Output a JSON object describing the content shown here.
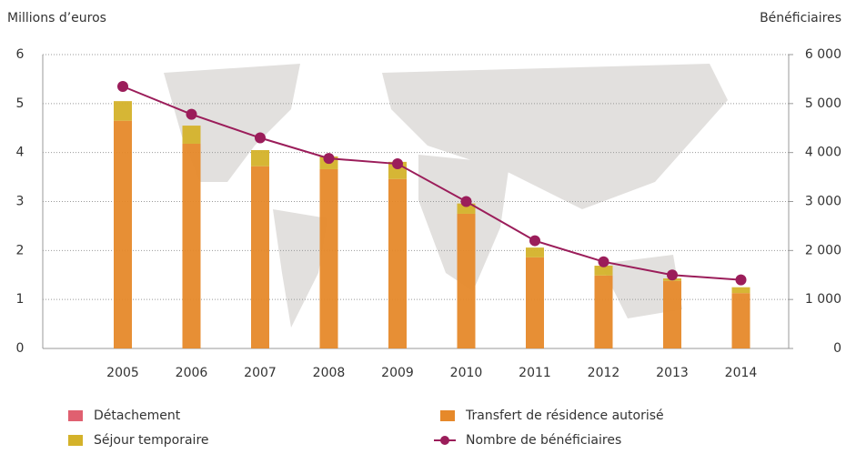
{
  "chart_data": {
    "type": "bar",
    "y_label": "Millions d’euros",
    "y2_label": "Bénéficiaires",
    "categories": [
      "2005",
      "2006",
      "2007",
      "2008",
      "2009",
      "2010",
      "2011",
      "2012",
      "2013",
      "2014"
    ],
    "series": [
      {
        "name": "Transfert de résidence autorisé",
        "color": "#e6892a",
        "values": [
          4.65,
          4.18,
          3.72,
          3.66,
          3.46,
          2.75,
          1.86,
          1.49,
          1.38,
          1.13
        ]
      },
      {
        "name": "Séjour temporaire",
        "color": "#d4b22a",
        "values": [
          0.4,
          0.37,
          0.33,
          0.26,
          0.35,
          0.21,
          0.2,
          0.2,
          0.05,
          0.12
        ]
      },
      {
        "name": "Détachement",
        "color": "#e06070",
        "values": [
          0,
          0,
          0,
          0,
          0,
          0,
          0,
          0,
          0,
          0
        ]
      },
      {
        "name": "Nombre de bénéficiaires",
        "color": "#9b1d5a",
        "type": "line",
        "axis": "y2",
        "values": [
          5350,
          4780,
          4300,
          3880,
          3770,
          3000,
          2200,
          1770,
          1500,
          1400
        ]
      }
    ],
    "ylim": [
      0,
      6
    ],
    "yticks": [
      0,
      1,
      2,
      3,
      4,
      5,
      6
    ],
    "y2lim": [
      0,
      6000
    ],
    "y2ticks": [
      0,
      {
        "value": 1000,
        "label": "1 000"
      },
      {
        "value": 2000,
        "label": "2 000"
      },
      {
        "value": 3000,
        "label": "3 000"
      },
      {
        "value": 4000,
        "label": "4 000"
      },
      {
        "value": 5000,
        "label": "5 000"
      },
      {
        "value": 6000,
        "label": "6 000"
      }
    ],
    "grid": true,
    "stacked": true,
    "legend": "bottom"
  }
}
